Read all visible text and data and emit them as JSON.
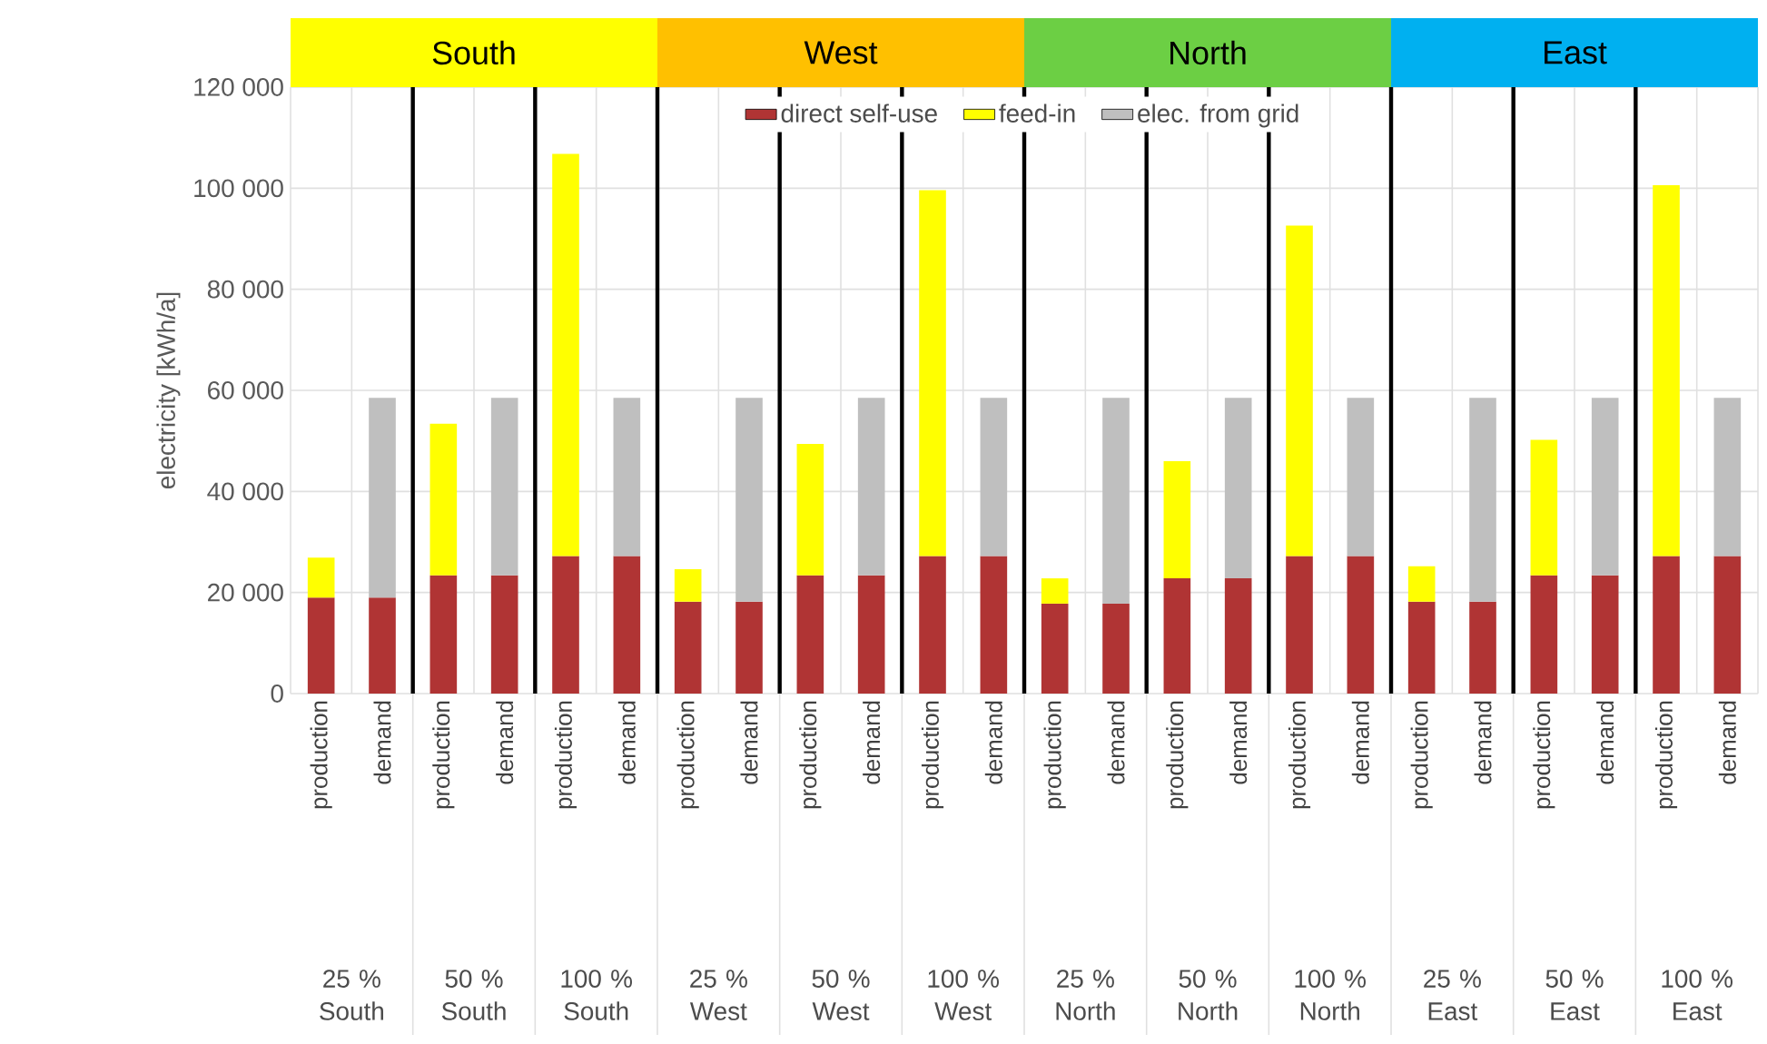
{
  "chart_data": {
    "type": "bar",
    "stacked": true,
    "ylabel": "electricity [kWh/a]",
    "categories": [
      "production",
      "demand",
      "production",
      "demand",
      "production",
      "demand",
      "production",
      "demand",
      "production",
      "demand",
      "production",
      "demand",
      "production",
      "demand",
      "production",
      "demand",
      "production",
      "demand",
      "production",
      "demand",
      "production",
      "demand",
      "production",
      "demand"
    ],
    "series": [
      {
        "name": "direct self-use",
        "color": "#b03434",
        "values": [
          19000,
          19000,
          23400,
          23400,
          27200,
          27200,
          18200,
          18200,
          23400,
          23400,
          27200,
          27200,
          17800,
          17800,
          22800,
          22800,
          27200,
          27200,
          18200,
          18200,
          23400,
          23400,
          27200,
          27200
        ]
      },
      {
        "name": "feed-in",
        "color": "#ffff00",
        "values": [
          7900,
          null,
          30000,
          null,
          79600,
          null,
          6400,
          null,
          26000,
          null,
          72400,
          null,
          5000,
          null,
          23200,
          null,
          65400,
          null,
          7000,
          null,
          26800,
          null,
          73400,
          null
        ]
      },
      {
        "name": "elec. from grid",
        "color": "#bfbfbf",
        "values": [
          null,
          39500,
          null,
          35100,
          null,
          31300,
          null,
          40300,
          null,
          35100,
          null,
          31300,
          null,
          40700,
          null,
          35700,
          null,
          31300,
          null,
          40300,
          null,
          35100,
          null,
          31300
        ]
      }
    ],
    "ylim": [
      0,
      120000
    ],
    "yticks": [
      0,
      {
        "value": 20000,
        "label": "20 000"
      },
      {
        "value": 40000,
        "label": "40 000"
      },
      {
        "value": 60000,
        "label": "60 000"
      },
      {
        "value": 80000,
        "label": "80 000"
      },
      {
        "value": 100000,
        "label": "100 000"
      },
      {
        "value": 120000,
        "label": "120 000"
      }
    ],
    "grid": true,
    "legend": "top",
    "annotations": [
      "South",
      "West",
      "North",
      "East",
      "25 % South",
      "50 % South",
      "100 % South",
      "25 % West",
      "50 % West",
      "100 % West",
      "25 % North",
      "50 % North",
      "100 % North",
      "25 % East",
      "50 % East",
      "100 % East"
    ]
  }
}
